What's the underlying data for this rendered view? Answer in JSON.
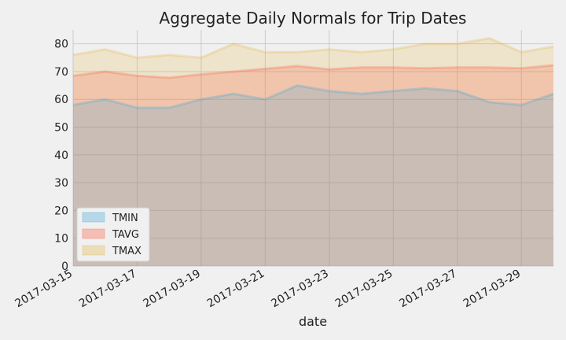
{
  "chart_data": {
    "type": "area",
    "title": "Aggregate Daily Normals for Trip Dates",
    "xlabel": "date",
    "ylabel": "",
    "ylim": [
      0,
      85
    ],
    "yticks": [
      0,
      10,
      20,
      30,
      40,
      50,
      60,
      70,
      80
    ],
    "x": [
      "2017-03-15",
      "2017-03-16",
      "2017-03-17",
      "2017-03-18",
      "2017-03-19",
      "2017-03-20",
      "2017-03-21",
      "2017-03-22",
      "2017-03-23",
      "2017-03-24",
      "2017-03-25",
      "2017-03-26",
      "2017-03-27",
      "2017-03-28",
      "2017-03-29",
      "2017-03-30"
    ],
    "xticks": [
      "2017-03-15",
      "2017-03-17",
      "2017-03-19",
      "2017-03-21",
      "2017-03-23",
      "2017-03-25",
      "2017-03-27",
      "2017-03-29"
    ],
    "stacked": false,
    "grid": true,
    "legend_position": "lower-left",
    "series": [
      {
        "name": "TMIN",
        "color": "#30a2da",
        "values": [
          58,
          60,
          57,
          57,
          60,
          62,
          60,
          65,
          63,
          62,
          63,
          64,
          63,
          59,
          58,
          62
        ]
      },
      {
        "name": "TAVG",
        "color": "#fc4f30",
        "values": [
          68.5,
          70,
          68.5,
          67.8,
          69,
          70,
          71,
          72,
          70.8,
          71.5,
          71.5,
          71.2,
          71.5,
          71.5,
          71.2,
          72.3
        ]
      },
      {
        "name": "TMAX",
        "color": "#e5ae38",
        "values": [
          76,
          78,
          75,
          76,
          75,
          80,
          77,
          77,
          78,
          77,
          78,
          80,
          80,
          82,
          77,
          79
        ]
      }
    ]
  }
}
